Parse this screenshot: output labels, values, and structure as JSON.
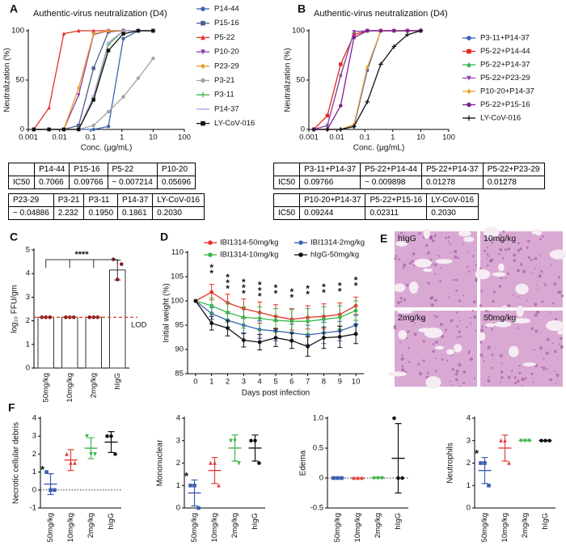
{
  "chart_data": [
    {
      "panel": "A",
      "type": "dose_response",
      "title": "Authentic-virus neutralization (D4)",
      "x_label": "Conc. (μg/mL)",
      "y_label": "Neutralization (%)",
      "xscale": "log",
      "xlim": [
        0.001,
        100
      ],
      "xticks": [
        0.001,
        0.01,
        0.1,
        1,
        10,
        100
      ],
      "ylim": [
        0,
        100
      ],
      "yticks": [
        0,
        50,
        100
      ],
      "x": [
        0.0015,
        0.0046,
        0.0137,
        0.041,
        0.123,
        0.37,
        1.11,
        3.33,
        10
      ],
      "series": [
        {
          "name": "P14-44",
          "color": "#3d63b3",
          "marker": "circle",
          "values": [
            0,
            0,
            0,
            0,
            0,
            3,
            92,
            100,
            100
          ]
        },
        {
          "name": "P15-16",
          "color": "#4b5d8c",
          "marker": "square",
          "values": [
            0,
            0,
            0,
            4,
            62,
            99,
            100,
            100,
            100
          ]
        },
        {
          "name": "P5-22",
          "color": "#e53228",
          "marker": "triangle",
          "values": [
            0,
            22,
            97,
            100,
            100,
            100,
            100,
            100,
            100
          ]
        },
        {
          "name": "P10-20",
          "color": "#8f3fb0",
          "marker": "triangle-down",
          "values": [
            0,
            0,
            0,
            35,
            96,
            100,
            100,
            100,
            100
          ]
        },
        {
          "name": "P23-29",
          "color": "#e89a2c",
          "marker": "diamond",
          "values": [
            0,
            0,
            0,
            42,
            97,
            100,
            100,
            100,
            100
          ]
        },
        {
          "name": "P3-21",
          "color": "#a3a3a3",
          "marker": "circle",
          "values": [
            0,
            0,
            0,
            0,
            4,
            18,
            33,
            52,
            72
          ]
        },
        {
          "name": "P3-11",
          "color": "#3db54a",
          "marker": "plus",
          "values": [
            0,
            0,
            0,
            0,
            32,
            86,
            100,
            100,
            100
          ]
        },
        {
          "name": "P14-37",
          "color": "#b7a3e3",
          "marker": "dash",
          "values": [
            0,
            0,
            0,
            0,
            34,
            88,
            100,
            100,
            100
          ]
        },
        {
          "name": "LY-CoV-016",
          "color": "#111111",
          "marker": "square",
          "values": [
            0,
            0,
            0,
            0,
            30,
            80,
            97,
            100,
            100
          ]
        }
      ]
    },
    {
      "panel": "B",
      "type": "dose_response",
      "title": "Authentic-virus neutralization (D4)",
      "x_label": "Conc. (μg/mL)",
      "y_label": "Neutralization (%)",
      "xscale": "log",
      "xlim": [
        0.001,
        100
      ],
      "xticks": [
        0.001,
        0.01,
        0.1,
        1,
        10,
        100
      ],
      "ylim": [
        0,
        100
      ],
      "yticks": [
        0,
        50,
        100
      ],
      "x": [
        0.0015,
        0.0046,
        0.0137,
        0.041,
        0.123,
        0.37,
        1.11,
        3.33,
        10
      ],
      "series": [
        {
          "name": "P3-11+P14-37",
          "color": "#3b60c4",
          "marker": "circle",
          "values": [
            0,
            0,
            0,
            3,
            60,
            100,
            100,
            100,
            100
          ]
        },
        {
          "name": "P5-22+P14-44",
          "color": "#e3261f",
          "marker": "square",
          "values": [
            0,
            14,
            66,
            96,
            100,
            100,
            100,
            100,
            100
          ]
        },
        {
          "name": "P5-22+P14-37",
          "color": "#2fb34b",
          "marker": "triangle",
          "values": [
            0,
            4,
            55,
            99,
            100,
            100,
            100,
            100,
            100
          ]
        },
        {
          "name": "P5-22+P23-29",
          "color": "#9a42b8",
          "marker": "triangle-down",
          "values": [
            0,
            4,
            54,
            99,
            100,
            100,
            100,
            100,
            100
          ]
        },
        {
          "name": "P10-20+P14-37",
          "color": "#f0a131",
          "marker": "diamond",
          "values": [
            0,
            0,
            0,
            5,
            63,
            100,
            100,
            100,
            100
          ]
        },
        {
          "name": "P5-22+P15-16",
          "color": "#7c1f92",
          "marker": "circle",
          "values": [
            0,
            0,
            24,
            93,
            100,
            100,
            100,
            100,
            100
          ]
        },
        {
          "name": "LY-CoV-016",
          "color": "#111111",
          "marker": "plus",
          "values": [
            0,
            0,
            0,
            3,
            28,
            66,
            84,
            96,
            100
          ]
        }
      ]
    },
    {
      "panel": "C",
      "type": "bar_dot",
      "y_label": "log₁₀ FFU/gm",
      "categories": [
        "50mg/kg",
        "10mg/kg",
        "2mg/kg",
        "hIgG"
      ],
      "values": [
        2.15,
        2.15,
        2.15,
        4.15
      ],
      "errors": [
        0,
        0,
        0,
        0.42
      ],
      "points": [
        [
          2.15,
          2.15,
          2.15
        ],
        [
          2.15,
          2.15,
          2.15
        ],
        [
          2.15,
          2.15,
          2.15
        ],
        [
          4.6,
          3.75,
          4.4
        ]
      ],
      "color": "#8b1a1a",
      "ylim": [
        0,
        5
      ],
      "yticks": [
        0,
        1,
        2,
        3,
        4,
        5
      ],
      "lod": {
        "value": 2.15,
        "label": "LOD",
        "color": "#d9352f"
      },
      "significance": "****"
    },
    {
      "panel": "D",
      "type": "line",
      "x_label": "Days post infection",
      "y_label": "Initial weight (%)",
      "x": [
        0,
        1,
        2,
        3,
        4,
        5,
        6,
        7,
        8,
        9,
        10
      ],
      "xlim": [
        -0.5,
        10.5
      ],
      "xticks": [
        0,
        1,
        2,
        3,
        4,
        5,
        6,
        7,
        8,
        9,
        10
      ],
      "ylim": [
        85,
        110
      ],
      "yticks": [
        85,
        90,
        95,
        100,
        105,
        110
      ],
      "series": [
        {
          "name": "IBI1314-50mg/kg",
          "color": "#e53228",
          "values": [
            100,
            101.8,
            99.6,
            98.4,
            97.6,
            96.8,
            96.2,
            96.6,
            96.8,
            97.2,
            99
          ],
          "errors": [
            0,
            1.6,
            1.8,
            2,
            2.2,
            2.4,
            2.2,
            2.4,
            2.6,
            2.4,
            1.8
          ]
        },
        {
          "name": "IBI1314-2mg/kg",
          "color": "#3a64b4",
          "values": [
            100,
            97.4,
            96,
            95,
            94.1,
            93.8,
            93.4,
            93,
            93.4,
            93.8,
            95
          ],
          "errors": [
            0,
            1.2,
            1.4,
            1.6,
            1.8,
            2,
            1.8,
            2,
            2.2,
            2,
            2
          ]
        },
        {
          "name": "IBI1314-10mg/kg",
          "color": "#3db54a",
          "values": [
            100,
            99,
            97.6,
            96.6,
            96.4,
            96,
            95.8,
            95.8,
            96.2,
            96.6,
            98
          ],
          "errors": [
            0,
            1.6,
            2,
            2.2,
            2.4,
            2.4,
            2.4,
            2.6,
            2.6,
            2.4,
            2
          ]
        },
        {
          "name": "hIgG-50mg/kg",
          "color": "#111111",
          "values": [
            100,
            95.4,
            94.4,
            91.9,
            91.5,
            92.4,
            91.8,
            90.6,
            92.4,
            92.6,
            93.2
          ],
          "errors": [
            0,
            1.4,
            1.6,
            1.4,
            1.6,
            1.8,
            1.6,
            2,
            2.2,
            2.2,
            2
          ]
        }
      ],
      "significance": [
        {
          "series": 0,
          "label": "*",
          "days": [
            1,
            2,
            3,
            4,
            5,
            6,
            7,
            8,
            9,
            10
          ]
        },
        {
          "series": 2,
          "label": "*",
          "days": [
            1,
            2,
            3,
            4,
            5,
            6,
            7,
            8,
            9,
            10
          ]
        },
        {
          "series": 1,
          "label": "*",
          "days": [
            2,
            3,
            4
          ]
        }
      ]
    },
    {
      "panel": "F",
      "type": "dot",
      "y_label": "Necrotic cellular debris",
      "categories": [
        "50mg/kg",
        "10mg/kg",
        "2mg/kg",
        "hIgG"
      ],
      "colors": [
        "#3a5fb0",
        "#e0413f",
        "#3cb44b",
        "#111111"
      ],
      "markers": [
        "square",
        "triangle",
        "triangle-down",
        "circle"
      ],
      "points": [
        [
          1,
          0,
          0
        ],
        [
          2,
          1.5,
          1.5
        ],
        [
          3,
          2,
          2
        ],
        [
          3,
          3,
          2
        ]
      ],
      "means": [
        0.33,
        1.67,
        2.33,
        2.67
      ],
      "errors": [
        0.58,
        0.58,
        0.58,
        0.58
      ],
      "ylim": [
        -1,
        4
      ],
      "yticks": [
        -1,
        0,
        1,
        2,
        3,
        4
      ],
      "reference_line": 0,
      "annotations": [
        {
          "category": 0,
          "label": "*"
        }
      ]
    },
    {
      "type": "dot",
      "y_label": "Mononuclear",
      "categories": [
        "50mg/kg",
        "10mg/kg",
        "2mg/kg",
        "hIgG"
      ],
      "colors": [
        "#3a5fb0",
        "#e0413f",
        "#3cb44b",
        "#111111"
      ],
      "markers": [
        "square",
        "triangle",
        "triangle-down",
        "circle"
      ],
      "points": [
        [
          1,
          1,
          0
        ],
        [
          2,
          2,
          1
        ],
        [
          3,
          3,
          2
        ],
        [
          3,
          3,
          2
        ]
      ],
      "means": [
        0.67,
        1.67,
        2.67,
        2.67
      ],
      "errors": [
        0.58,
        0.58,
        0.58,
        0.58
      ],
      "ylim": [
        0,
        4
      ],
      "yticks": [
        0,
        1,
        2,
        3,
        4
      ],
      "annotations": [
        {
          "category": 0,
          "label": "*"
        }
      ]
    },
    {
      "type": "dot",
      "y_label": "Edema",
      "categories": [
        "50mg/kg",
        "10mg/kg",
        "2mg/kg",
        "hIgG"
      ],
      "colors": [
        "#3a5fb0",
        "#e0413f",
        "#3cb44b",
        "#111111"
      ],
      "markers": [
        "square",
        "triangle",
        "triangle-down",
        "circle"
      ],
      "points": [
        [
          0,
          0,
          0
        ],
        [
          0,
          0,
          0
        ],
        [
          0,
          0,
          0
        ],
        [
          1,
          0,
          0
        ]
      ],
      "means": [
        0,
        0,
        0,
        0.33
      ],
      "errors": [
        0,
        0,
        0,
        0.58
      ],
      "ylim": [
        -0.5,
        1
      ],
      "yticks": [
        -0.5,
        0,
        0.5,
        {
          "value": 1,
          "label": "1.0"
        }
      ],
      "reference_line": 0
    },
    {
      "type": "dot",
      "y_label": "Neutrophils",
      "categories": [
        "50mg/kg",
        "10mg/kg",
        "2mg/kg",
        "hIgG"
      ],
      "colors": [
        "#3a5fb0",
        "#e0413f",
        "#3cb44b",
        "#111111"
      ],
      "markers": [
        "square",
        "triangle",
        "triangle-down",
        "circle"
      ],
      "points": [
        [
          2,
          2,
          1
        ],
        [
          3,
          3,
          2
        ],
        [
          3,
          3,
          3
        ],
        [
          3,
          3,
          3
        ]
      ],
      "means": [
        1.67,
        2.67,
        3,
        3
      ],
      "errors": [
        0.58,
        0.58,
        0,
        0
      ],
      "ylim": [
        0,
        4
      ],
      "yticks": [
        0,
        1,
        2,
        3,
        4
      ],
      "annotations": [
        {
          "category": 0,
          "label": "*"
        }
      ]
    }
  ],
  "tables": [
    {
      "columns": [
        "P14-44",
        "P15-16",
        "P5-22",
        "P10-20"
      ],
      "row_label": "IC50",
      "values": [
        "0.7066",
        "0.09766",
        "~ 0.007214",
        "0.05696"
      ]
    },
    {
      "columns": [
        "P23-29",
        "P3-21",
        "P3-11",
        "P14-37",
        "LY-CoV-016"
      ],
      "values": [
        "~ 0.04886",
        "2.232",
        "0.1950",
        "0.1861",
        "0.2030"
      ]
    },
    {
      "columns": [
        "P3-11+P14-37",
        "P5-22+P14-44",
        "P5-22+P14-37",
        "P5-22+P23-29"
      ],
      "row_label": "IC50",
      "values": [
        "0.09766",
        "~ 0.009898",
        "0.01278",
        "0.01278"
      ]
    },
    {
      "columns": [
        "P10-20+P14-37",
        "P5-22+P15-16",
        "LY-CoV-016"
      ],
      "row_label": "IC50",
      "values": [
        "0.09244",
        "0.02311",
        "0.2030"
      ]
    }
  ],
  "histology": {
    "panel": "E",
    "labels": [
      "hIgG",
      "10mg/kg",
      "2mg/kg",
      "50mg/kg"
    ]
  }
}
